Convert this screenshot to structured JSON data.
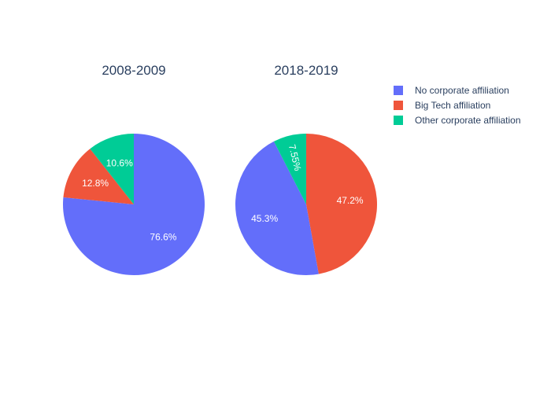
{
  "chart_data": {
    "type": "pie",
    "legend_placement": "top-right",
    "legend": [
      {
        "label": "No corporate affiliation",
        "color": "#636efa"
      },
      {
        "label": "Big Tech affiliation",
        "color": "#EF553B"
      },
      {
        "label": "Other corporate affiliation",
        "color": "#00cc96"
      }
    ],
    "pies": [
      {
        "title": "2008-2009",
        "slices": [
          {
            "label": "No corporate affiliation",
            "value": 76.6,
            "text": "76.6%",
            "color": "#636efa"
          },
          {
            "label": "Big Tech affiliation",
            "value": 12.8,
            "text": "12.8%",
            "color": "#EF553B"
          },
          {
            "label": "Other corporate affiliation",
            "value": 10.6,
            "text": "10.6%",
            "color": "#00cc96"
          }
        ]
      },
      {
        "title": "2018-2019",
        "slices": [
          {
            "label": "Big Tech affiliation",
            "value": 47.2,
            "text": "47.2%",
            "color": "#EF553B"
          },
          {
            "label": "No corporate affiliation",
            "value": 45.3,
            "text": "45.3%",
            "color": "#636efa"
          },
          {
            "label": "Other corporate affiliation",
            "value": 7.55,
            "text": "7.55%",
            "color": "#00cc96"
          }
        ]
      }
    ]
  }
}
